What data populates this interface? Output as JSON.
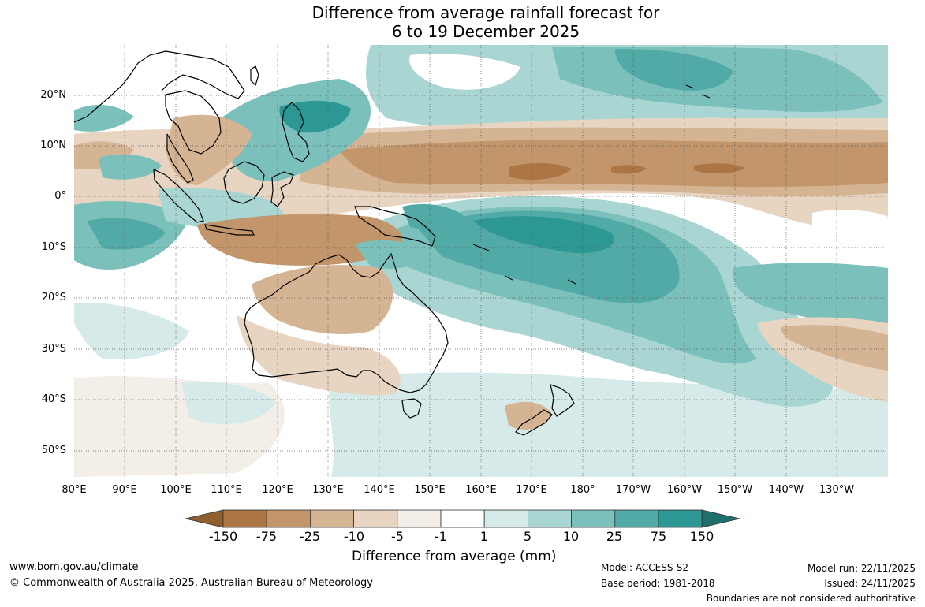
{
  "title_line1": "Difference from average rainfall forecast for",
  "title_line2": "6 to 19 December 2025",
  "latitude_labels": [
    "20°N",
    "10°N",
    "0°",
    "10°S",
    "20°S",
    "30°S",
    "40°S",
    "50°S"
  ],
  "longitude_labels": [
    "80°E",
    "90°E",
    "100°E",
    "110°E",
    "120°E",
    "130°E",
    "140°E",
    "150°E",
    "160°E",
    "170°E",
    "180°",
    "170°W",
    "160°W",
    "150°W",
    "140°W",
    "130°W"
  ],
  "legend": {
    "title": "Difference from average (mm)",
    "tick_labels": [
      "-150",
      "-75",
      "-25",
      "-10",
      "-5",
      "-1",
      "1",
      "5",
      "10",
      "25",
      "75",
      "150"
    ],
    "colors": [
      "#8f5f2f",
      "#ac7544",
      "#c2956a",
      "#d5b493",
      "#e7d4c1",
      "#f3eee8",
      "#ffffff",
      "#d6eaea",
      "#a9d5d2",
      "#7cc0bc",
      "#52aaa6",
      "#2d9793",
      "#1f6f6c"
    ]
  },
  "footer": {
    "website": "www.bom.gov.au/climate",
    "copyright": "© Commonwealth of Australia 2025, Australian Bureau of Meteorology",
    "model": "Model: ACCESS-S2",
    "base_period": "Base period: 1981-2018",
    "model_run": "Model run: 22/11/2025",
    "issued": "Issued: 24/11/2025",
    "disclaimer": "Boundaries are not considered authoritative"
  }
}
